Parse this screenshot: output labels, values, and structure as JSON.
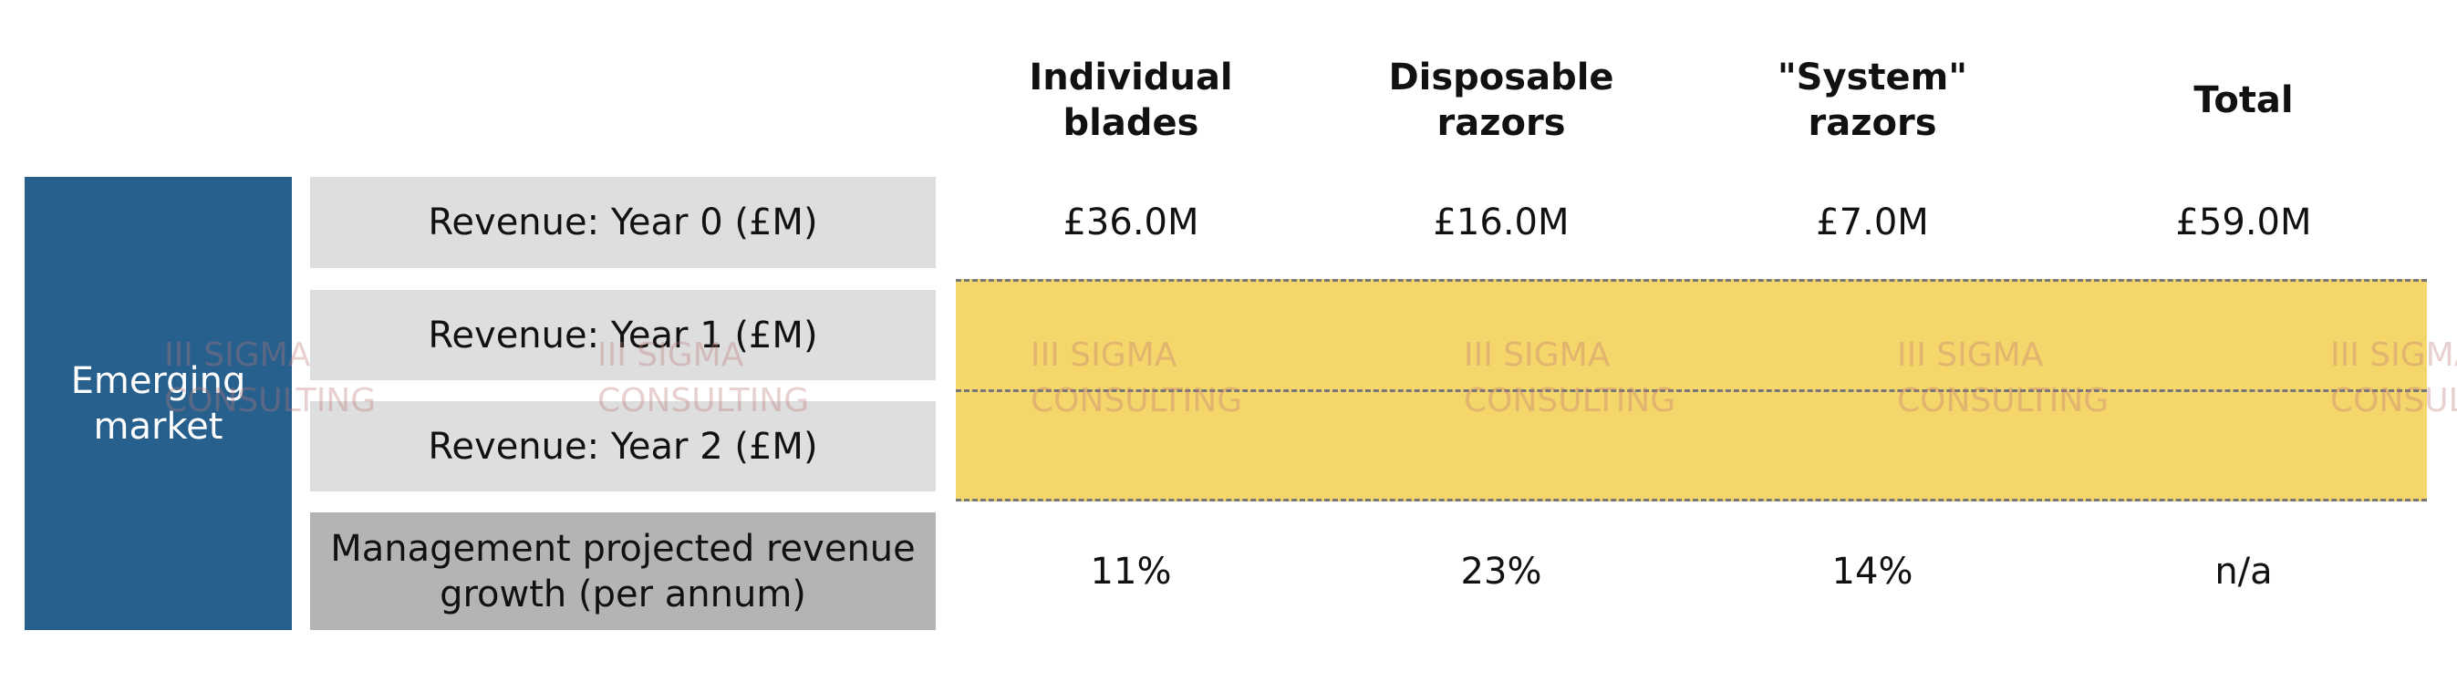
{
  "header": {
    "group": "Emerging market",
    "columns": [
      "Individual blades",
      "Disposable razors",
      "\"System\" razors",
      "Total"
    ]
  },
  "rows": [
    {
      "label": "Revenue: Year 0 (£M)",
      "cells": [
        "£36.0M",
        "£16.0M",
        "£7.0M",
        "£59.0M"
      ]
    },
    {
      "label": "Revenue: Year 1 (£M)"
    },
    {
      "label": "Revenue: Year 2 (£M)"
    },
    {
      "label": "Management projected revenue growth (per annum)",
      "cells": [
        "11%",
        "23%",
        "14%",
        "n/a"
      ]
    }
  ],
  "watermark": {
    "line1": "III SIGMA",
    "line2": "CONSULTING"
  }
}
